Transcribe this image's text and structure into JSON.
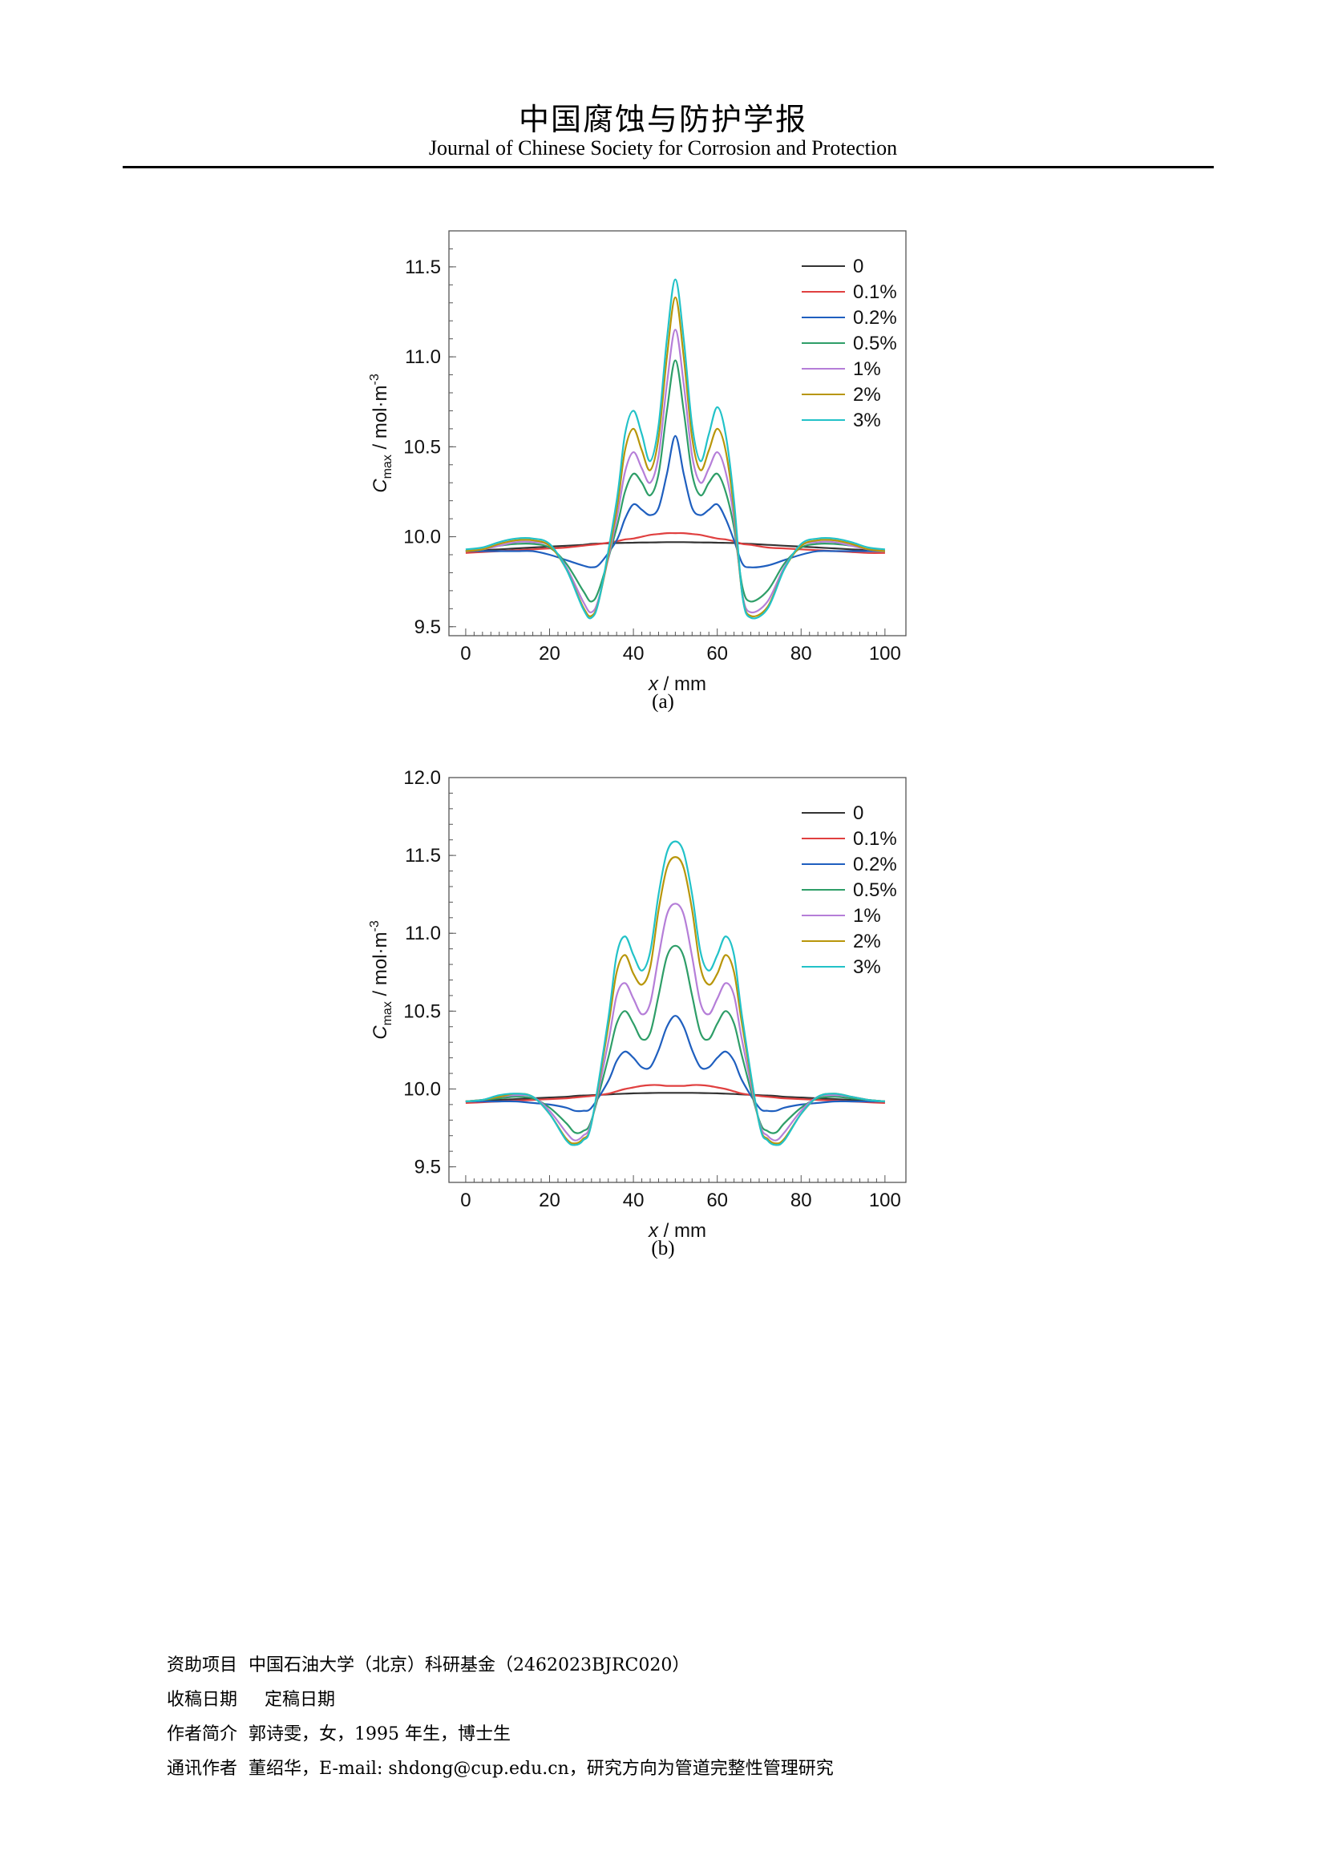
{
  "header": {
    "title_cn": "中国腐蚀与防护学报",
    "title_en": "Journal of Chinese Society for Corrosion and Protection"
  },
  "figures": [
    {
      "caption": "(a)",
      "chart_data": {
        "type": "line",
        "xlabel_var": "x",
        "xlabel_unit": "mm",
        "ylabel_var": "C",
        "ylabel_sub": "max",
        "ylabel_unit": "mol·m",
        "ylabel_sup": "-3",
        "xlim": [
          -4,
          105
        ],
        "ylim": [
          9.45,
          11.7
        ],
        "xticks": [
          0,
          20,
          40,
          60,
          80,
          100
        ],
        "yticks": [
          9.5,
          10.0,
          10.5,
          11.0,
          11.5
        ],
        "ytick_labels": [
          "9.5",
          "10.0",
          "10.5",
          "11.0",
          "11.5"
        ],
        "legend_position": "top-right",
        "grid": false,
        "x": [
          0,
          4,
          8,
          12,
          16,
          20,
          24,
          28,
          30,
          32,
          36,
          38,
          40,
          42,
          44,
          46,
          48,
          50,
          52,
          54,
          56,
          58,
          60,
          62,
          64,
          66,
          68,
          72,
          76,
          80,
          84,
          88,
          92,
          96,
          100
        ],
        "series": [
          {
            "name": "0",
            "color": "#333333",
            "values": [
              9.92,
              9.925,
              9.93,
              9.935,
              9.94,
              9.945,
              9.95,
              9.955,
              9.96,
              9.962,
              9.965,
              9.966,
              9.967,
              9.968,
              9.968,
              9.969,
              9.97,
              9.97,
              9.97,
              9.969,
              9.968,
              9.968,
              9.967,
              9.966,
              9.965,
              9.962,
              9.96,
              9.955,
              9.95,
              9.945,
              9.94,
              9.935,
              9.93,
              9.925,
              9.92
            ]
          },
          {
            "name": "0.1%",
            "color": "#e04040",
            "values": [
              9.91,
              9.915,
              9.92,
              9.925,
              9.93,
              9.935,
              9.94,
              9.95,
              9.955,
              9.96,
              9.975,
              9.985,
              9.99,
              10.0,
              10.01,
              10.015,
              10.02,
              10.02,
              10.02,
              10.015,
              10.01,
              10.0,
              9.99,
              9.985,
              9.975,
              9.96,
              9.955,
              9.94,
              9.935,
              9.93,
              9.925,
              9.92,
              9.915,
              9.91,
              9.91
            ]
          },
          {
            "name": "0.2%",
            "color": "#1f5fbf",
            "values": [
              9.92,
              9.92,
              9.92,
              9.92,
              9.92,
              9.9,
              9.87,
              9.84,
              9.83,
              9.85,
              9.98,
              10.1,
              10.18,
              10.15,
              10.12,
              10.16,
              10.35,
              10.56,
              10.35,
              10.16,
              10.12,
              10.15,
              10.18,
              10.1,
              9.98,
              9.85,
              9.83,
              9.84,
              9.87,
              9.9,
              9.92,
              9.92,
              9.92,
              9.92,
              9.92
            ]
          },
          {
            "name": "0.5%",
            "color": "#2e9e68",
            "values": [
              9.92,
              9.93,
              9.95,
              9.96,
              9.96,
              9.94,
              9.85,
              9.7,
              9.64,
              9.72,
              10.05,
              10.25,
              10.35,
              10.3,
              10.23,
              10.35,
              10.7,
              10.98,
              10.7,
              10.35,
              10.23,
              10.3,
              10.35,
              10.25,
              10.05,
              9.72,
              9.64,
              9.7,
              9.85,
              9.94,
              9.96,
              9.96,
              9.95,
              9.93,
              9.92
            ]
          },
          {
            "name": "1%",
            "color": "#b57ed8",
            "values": [
              9.92,
              9.93,
              9.95,
              9.97,
              9.97,
              9.95,
              9.83,
              9.64,
              9.58,
              9.68,
              10.1,
              10.36,
              10.47,
              10.38,
              10.3,
              10.45,
              10.85,
              11.15,
              10.85,
              10.45,
              10.3,
              10.38,
              10.47,
              10.36,
              10.1,
              9.68,
              9.58,
              9.64,
              9.83,
              9.95,
              9.97,
              9.97,
              9.95,
              9.93,
              9.92
            ]
          },
          {
            "name": "2%",
            "color": "#b8960a",
            "values": [
              9.92,
              9.93,
              9.96,
              9.98,
              9.98,
              9.95,
              9.82,
              9.61,
              9.56,
              9.67,
              10.15,
              10.48,
              10.6,
              10.48,
              10.37,
              10.55,
              11.0,
              11.33,
              11.0,
              10.55,
              10.37,
              10.48,
              10.6,
              10.48,
              10.15,
              9.67,
              9.56,
              9.61,
              9.82,
              9.95,
              9.98,
              9.98,
              9.96,
              9.93,
              9.92
            ]
          },
          {
            "name": "3%",
            "color": "#22c2c8",
            "values": [
              9.93,
              9.94,
              9.97,
              9.99,
              9.99,
              9.96,
              9.82,
              9.6,
              9.55,
              9.67,
              10.2,
              10.57,
              10.7,
              10.57,
              10.42,
              10.62,
              11.1,
              11.43,
              11.1,
              10.62,
              10.42,
              10.57,
              10.72,
              10.57,
              10.2,
              9.67,
              9.55,
              9.6,
              9.82,
              9.96,
              9.99,
              9.99,
              9.97,
              9.94,
              9.93
            ]
          }
        ]
      }
    },
    {
      "caption": "(b)",
      "chart_data": {
        "type": "line",
        "xlabel_var": "x",
        "xlabel_unit": "mm",
        "ylabel_var": "C",
        "ylabel_sub": "max",
        "ylabel_unit": "mol·m",
        "ylabel_sup": "-3",
        "xlim": [
          -4,
          105
        ],
        "ylim": [
          9.4,
          12.0
        ],
        "xticks": [
          0,
          20,
          40,
          60,
          80,
          100
        ],
        "yticks": [
          9.5,
          10.0,
          10.5,
          11.0,
          11.5,
          12.0
        ],
        "ytick_labels": [
          "9.5",
          "10.0",
          "10.5",
          "11.0",
          "11.5",
          "12.0"
        ],
        "legend_position": "top-right",
        "grid": false,
        "x": [
          0,
          4,
          8,
          12,
          16,
          20,
          24,
          26,
          28,
          30,
          34,
          36,
          38,
          40,
          42,
          44,
          46,
          48,
          50,
          52,
          54,
          56,
          58,
          60,
          62,
          64,
          66,
          70,
          72,
          74,
          76,
          80,
          84,
          88,
          92,
          96,
          100
        ],
        "series": [
          {
            "name": "0",
            "color": "#333333",
            "values": [
              9.92,
              9.925,
              9.93,
              9.935,
              9.94,
              9.945,
              9.95,
              9.955,
              9.958,
              9.96,
              9.965,
              9.968,
              9.97,
              9.972,
              9.973,
              9.974,
              9.975,
              9.975,
              9.975,
              9.975,
              9.975,
              9.974,
              9.973,
              9.972,
              9.97,
              9.968,
              9.965,
              9.96,
              9.958,
              9.955,
              9.95,
              9.945,
              9.94,
              9.935,
              9.93,
              9.925,
              9.92
            ]
          },
          {
            "name": "0.1%",
            "color": "#e04040",
            "values": [
              9.91,
              9.915,
              9.92,
              9.925,
              9.93,
              9.935,
              9.94,
              9.945,
              9.95,
              9.955,
              9.97,
              9.985,
              10.0,
              10.01,
              10.02,
              10.025,
              10.025,
              10.02,
              10.02,
              10.02,
              10.025,
              10.025,
              10.02,
              10.01,
              10.0,
              9.985,
              9.97,
              9.955,
              9.95,
              9.945,
              9.94,
              9.935,
              9.93,
              9.925,
              9.92,
              9.915,
              9.91
            ]
          },
          {
            "name": "0.2%",
            "color": "#1f5fbf",
            "values": [
              9.92,
              9.92,
              9.92,
              9.92,
              9.91,
              9.9,
              9.88,
              9.86,
              9.86,
              9.88,
              10.05,
              10.18,
              10.24,
              10.2,
              10.14,
              10.14,
              10.25,
              10.4,
              10.47,
              10.4,
              10.25,
              10.14,
              10.14,
              10.2,
              10.24,
              10.18,
              10.05,
              9.88,
              9.86,
              9.86,
              9.88,
              9.9,
              9.91,
              9.92,
              9.92,
              9.92,
              9.92
            ]
          },
          {
            "name": "0.5%",
            "color": "#2e9e68",
            "values": [
              9.92,
              9.93,
              9.94,
              9.95,
              9.94,
              9.88,
              9.78,
              9.72,
              9.73,
              9.8,
              10.2,
              10.42,
              10.5,
              10.42,
              10.32,
              10.36,
              10.6,
              10.85,
              10.92,
              10.85,
              10.6,
              10.36,
              10.32,
              10.42,
              10.5,
              10.42,
              10.2,
              9.8,
              9.73,
              9.72,
              9.78,
              9.88,
              9.94,
              9.95,
              9.94,
              9.93,
              9.92
            ]
          },
          {
            "name": "1%",
            "color": "#b57ed8",
            "values": [
              9.92,
              9.93,
              9.95,
              9.96,
              9.95,
              9.86,
              9.72,
              9.67,
              9.7,
              9.79,
              10.3,
              10.6,
              10.68,
              10.58,
              10.48,
              10.55,
              10.85,
              11.12,
              11.19,
              11.12,
              10.85,
              10.55,
              10.48,
              10.58,
              10.68,
              10.6,
              10.3,
              9.79,
              9.7,
              9.67,
              9.72,
              9.86,
              9.95,
              9.96,
              9.95,
              9.93,
              9.92
            ]
          },
          {
            "name": "2%",
            "color": "#b8960a",
            "values": [
              9.92,
              9.93,
              9.95,
              9.97,
              9.95,
              9.84,
              9.68,
              9.65,
              9.68,
              9.78,
              10.4,
              10.75,
              10.86,
              10.74,
              10.67,
              10.78,
              11.15,
              11.42,
              11.49,
              11.42,
              11.15,
              10.78,
              10.67,
              10.74,
              10.86,
              10.75,
              10.4,
              9.78,
              9.68,
              9.65,
              9.68,
              9.84,
              9.95,
              9.97,
              9.95,
              9.93,
              9.92
            ]
          },
          {
            "name": "3%",
            "color": "#22c2c8",
            "values": [
              9.92,
              9.93,
              9.96,
              9.97,
              9.95,
              9.84,
              9.67,
              9.64,
              9.67,
              9.78,
              10.45,
              10.86,
              10.98,
              10.86,
              10.76,
              10.88,
              11.25,
              11.52,
              11.59,
              11.52,
              11.25,
              10.88,
              10.76,
              10.86,
              10.98,
              10.86,
              10.45,
              9.78,
              9.67,
              9.64,
              9.67,
              9.84,
              9.95,
              9.97,
              9.95,
              9.93,
              9.92
            ]
          }
        ]
      }
    }
  ],
  "footnotes": {
    "funding_label": "资助项目",
    "funding_text": "中国石油大学（北京）科研基金（2462023BJRC020）",
    "received_label": "收稿日期",
    "final_label": "定稿日期",
    "bio_label": "作者简介",
    "bio_text": "郭诗雯，女，1995 年生，博士生",
    "corr_label": "通讯作者",
    "corr_text": "董绍华，E-mail: shdong@cup.edu.cn，研究方向为管道完整性管理研究"
  }
}
